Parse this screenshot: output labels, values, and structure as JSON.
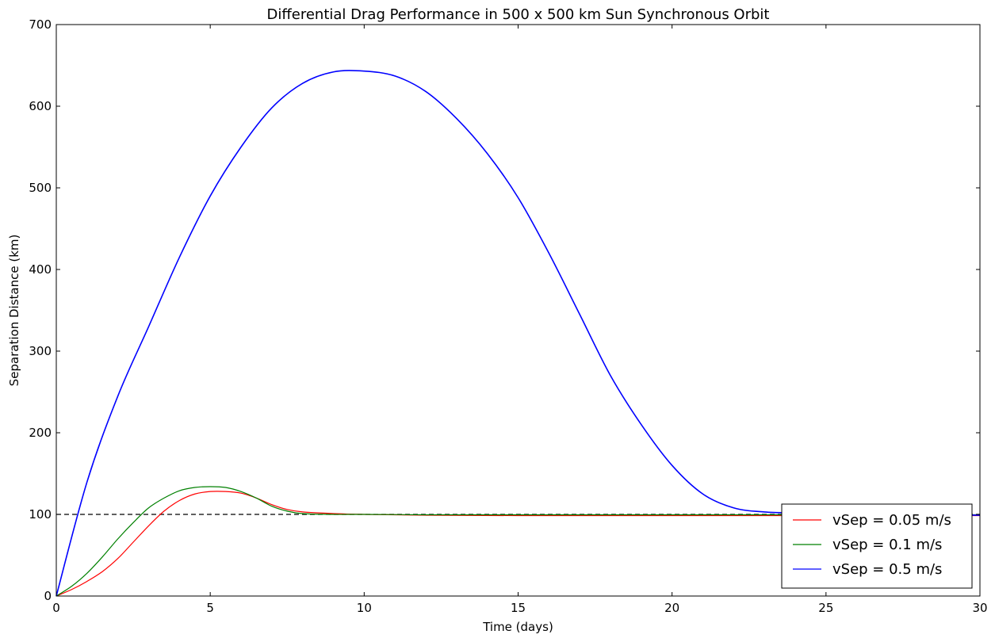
{
  "chart_data": {
    "type": "line",
    "title": "Differential Drag Performance in 500 x 500 km Sun Synchronous Orbit",
    "xlabel": "Time (days)",
    "ylabel": "Separation Distance (km)",
    "xlim": [
      0,
      30
    ],
    "ylim": [
      0,
      700
    ],
    "xticks": [
      0,
      5,
      10,
      15,
      20,
      25,
      30
    ],
    "yticks": [
      0,
      100,
      200,
      300,
      400,
      500,
      600,
      700
    ],
    "grid": false,
    "legend_position": "lower-right",
    "reference_line": {
      "y": 100,
      "style": "dashed",
      "color": "#000000"
    },
    "series": [
      {
        "name": "vSep = 0.05 m/s",
        "color": "#ff0000",
        "x": [
          0,
          0.5,
          1,
          1.5,
          2,
          2.5,
          3,
          3.5,
          4,
          4.5,
          5,
          5.5,
          6,
          6.5,
          7,
          7.5,
          8,
          9,
          10,
          12,
          15,
          20,
          25,
          30
        ],
        "y": [
          0,
          8,
          18,
          30,
          46,
          66,
          86,
          104,
          117,
          125,
          128,
          128,
          126,
          120,
          112,
          106,
          103,
          101,
          100,
          99,
          98.5,
          98.5,
          98.5,
          98.5
        ]
      },
      {
        "name": "vSep = 0.1 m/s",
        "color": "#008000",
        "x": [
          0,
          0.5,
          1,
          1.5,
          2,
          2.5,
          3,
          3.5,
          4,
          4.5,
          5,
          5.5,
          6,
          6.5,
          7,
          7.5,
          8,
          9,
          10,
          12,
          15,
          20,
          25,
          30
        ],
        "y": [
          0,
          12,
          28,
          48,
          70,
          90,
          108,
          120,
          129,
          133,
          134,
          133,
          128,
          120,
          110,
          104,
          101,
          100,
          100,
          99.5,
          99.5,
          99.5,
          99.5,
          99.5
        ]
      },
      {
        "name": "vSep = 0.5 m/s",
        "color": "#0000ff",
        "x": [
          0,
          1,
          2,
          3,
          4,
          5,
          6,
          7,
          8,
          9,
          10,
          11,
          12,
          13,
          14,
          15,
          16,
          17,
          18,
          19,
          20,
          21,
          22,
          23,
          24,
          25,
          26,
          27,
          28,
          29,
          30
        ],
        "y": [
          0,
          140,
          245,
          330,
          415,
          490,
          550,
          598,
          628,
          642,
          643,
          637,
          618,
          585,
          542,
          488,
          420,
          345,
          270,
          210,
          160,
          125,
          108,
          103,
          102,
          101.5,
          101,
          100.5,
          100,
          99.5,
          99
        ]
      }
    ]
  }
}
